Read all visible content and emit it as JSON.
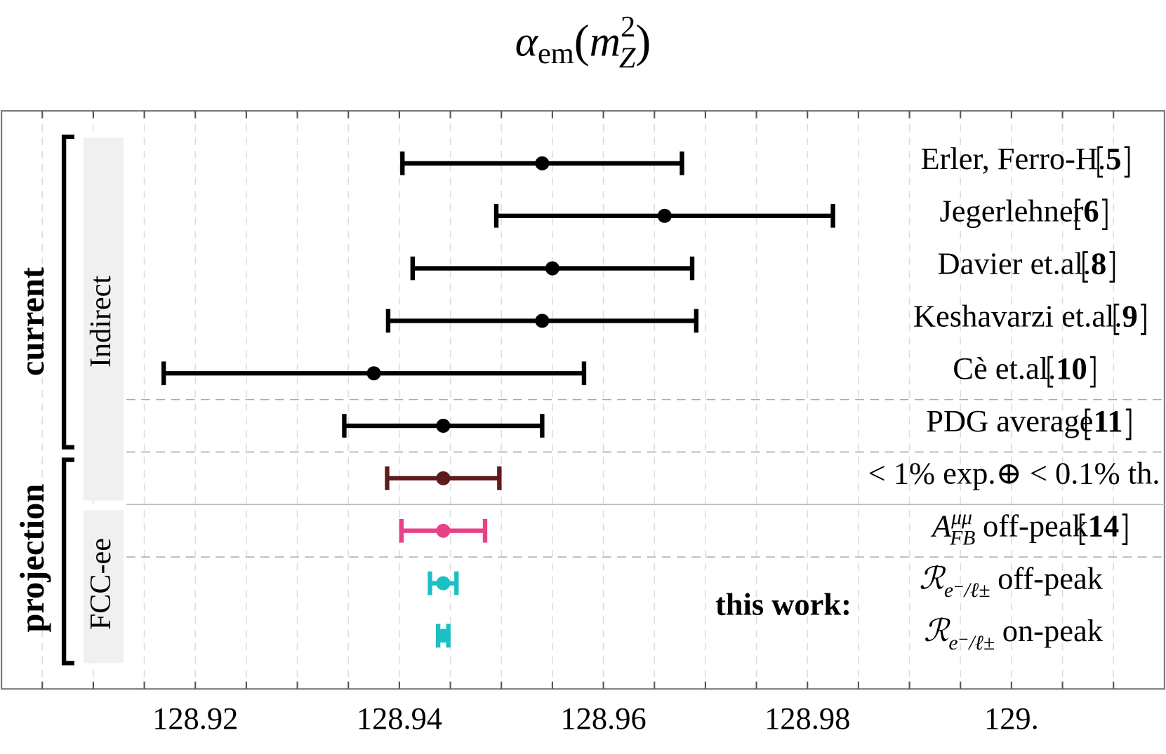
{
  "chart_data": {
    "type": "errorbar",
    "title": {
      "base": "α",
      "sub": "em",
      "open": "(",
      "arg": "m",
      "arg_sup": "2",
      "arg_sub": "Z",
      "close": ")"
    },
    "categories": [
      {
        "text": "Erler, Ferro-H.",
        "ref": "5"
      },
      {
        "text": "Jegerlehner",
        "ref": "6"
      },
      {
        "text": "Davier et.al.",
        "ref": "8"
      },
      {
        "text": "Keshavarzi et.al.",
        "ref": "9"
      },
      {
        "text": "Cè et.al.",
        "ref": "10"
      },
      {
        "text": "PDG average",
        "ref": "11"
      },
      {
        "text": "< 1% exp.⊕ < 0.1% th."
      },
      {
        "base": "A",
        "sup": "μμ",
        "sub": "FB",
        "text": "off-peak",
        "ref": "14"
      },
      {
        "base": "ℛ",
        "sub": "e⁻/ℓ±",
        "text": "off-peak"
      },
      {
        "base": "ℛ",
        "sub": "e⁻/ℓ±",
        "text": "on-peak"
      }
    ],
    "values": [
      128.954,
      128.966,
      128.955,
      128.954,
      128.9375,
      128.9443,
      128.9443,
      128.9443,
      128.9443,
      128.9443
    ],
    "xerr": [
      0.0137,
      0.0165,
      0.0137,
      0.0151,
      0.0206,
      0.0097,
      0.0055,
      0.0041,
      0.0013,
      0.0005
    ],
    "colors": [
      "#000000",
      "#000000",
      "#000000",
      "#000000",
      "#000000",
      "#000000",
      "#5e1c1c",
      "#e8418a",
      "#1ac0c4",
      "#1ac0c4"
    ],
    "xlim": [
      128.901,
      129.015
    ],
    "xticks": [
      128.92,
      128.94,
      128.96,
      128.98,
      {
        "value": 129,
        "label": "129."
      }
    ],
    "xminorticks": [
      128.905,
      128.91,
      128.915,
      128.925,
      128.93,
      128.935,
      128.945,
      128.95,
      128.955,
      128.965,
      128.97,
      128.975,
      128.985,
      128.99,
      128.995,
      129.005,
      129.01
    ],
    "grid": true,
    "groups": [
      {
        "name": "current"
      },
      {
        "name": "projection"
      }
    ],
    "subgroups": [
      {
        "name": "Indirect"
      },
      {
        "name": "FCC-ee"
      }
    ],
    "annotation": "this work:"
  }
}
